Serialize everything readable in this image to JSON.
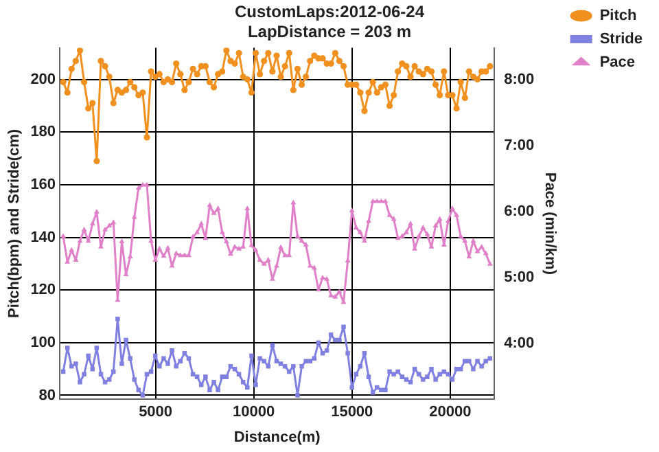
{
  "chart_data": {
    "type": "line",
    "title": "CustomLaps:2012-06-24",
    "subtitle": "LapDistance = 203 m",
    "xlabel": "Distance(m)",
    "ylabel": "Pitch(bpm) and Stride(cm)",
    "y2label": "Pace (min/km)",
    "x": [
      300,
      513,
      726,
      939,
      1152,
      1365,
      1578,
      1791,
      2004,
      2217,
      2430,
      2643,
      2856,
      3069,
      3282,
      3495,
      3708,
      3921,
      4134,
      4347,
      4560,
      4773,
      4986,
      5199,
      5412,
      5625,
      5838,
      6051,
      6264,
      6477,
      6690,
      6903,
      7116,
      7329,
      7542,
      7755,
      7968,
      8181,
      8394,
      8607,
      8820,
      9033,
      9246,
      9459,
      9672,
      9885,
      10098,
      10311,
      10524,
      10737,
      10950,
      11163,
      11376,
      11589,
      11802,
      12015,
      12228,
      12441,
      12654,
      12867,
      13080,
      13293,
      13506,
      13719,
      13932,
      14145,
      14358,
      14571,
      14784,
      14997,
      15210,
      15423,
      15636,
      15849,
      16062,
      16275,
      16488,
      16701,
      16914,
      17127,
      17340,
      17553,
      17766,
      17979,
      18192,
      18405,
      18618,
      18831,
      19044,
      19257,
      19470,
      19683,
      19896,
      20109,
      20322,
      20535,
      20748,
      20961,
      21174,
      21387,
      21600,
      21813,
      22026
    ],
    "series": [
      {
        "name": "Pitch",
        "color": "#f0901e",
        "marker": "circle",
        "values": [
          199,
          195,
          204,
          207,
          211,
          199,
          189,
          191,
          169,
          207,
          205,
          201,
          191,
          196,
          195,
          196,
          199,
          197,
          194,
          195,
          178,
          203,
          201,
          202,
          199,
          200,
          199,
          206,
          202,
          196,
          199,
          204,
          202,
          205,
          205,
          199,
          197,
          202,
          203,
          211,
          207,
          206,
          210,
          201,
          200,
          195,
          210,
          202,
          207,
          210,
          203,
          209,
          201,
          205,
          210,
          196,
          204,
          198,
          201,
          207,
          209,
          208,
          208,
          206,
          206,
          210,
          207,
          205,
          198,
          198,
          198,
          195,
          188,
          195,
          199,
          195,
          197,
          198,
          190,
          194,
          203,
          206,
          205,
          201,
          205,
          203,
          202,
          204,
          203,
          198,
          194,
          203,
          194,
          194,
          189,
          199,
          193,
          203,
          201,
          200,
          203,
          203,
          205
        ]
      },
      {
        "name": "Stride",
        "color": "#8080e0",
        "marker": "square",
        "values": [
          89,
          98,
          91,
          92,
          85,
          88,
          95,
          90,
          98,
          88,
          85,
          86,
          89,
          109,
          92,
          101,
          94,
          86,
          82,
          80,
          88,
          89,
          95,
          91,
          94,
          92,
          97,
          91,
          93,
          96,
          94,
          88,
          87,
          84,
          87,
          82,
          85,
          82,
          87,
          87,
          91,
          90,
          88,
          85,
          83,
          95,
          84,
          94,
          93,
          91,
          99,
          93,
          92,
          91,
          89,
          91,
          80,
          91,
          93,
          93,
          94,
          100,
          96,
          97,
          103,
          101,
          101,
          106,
          96,
          83,
          88,
          91,
          96,
          87,
          81,
          83,
          82,
          82,
          89,
          88,
          89,
          87,
          86,
          85,
          90,
          88,
          86,
          87,
          90,
          86,
          88,
          89,
          88,
          86,
          90,
          90,
          93,
          93,
          90,
          93,
          91,
          93,
          94
        ]
      },
      {
        "name": "Pace",
        "color": "#e080c8",
        "marker": "triangle",
        "axis": "y2",
        "values": [
          5.62,
          5.23,
          5.41,
          5.26,
          5.55,
          5.72,
          5.55,
          5.81,
          5.99,
          5.46,
          5.72,
          5.78,
          5.83,
          4.65,
          5.54,
          5.04,
          5.31,
          5.91,
          6.35,
          6.4,
          6.4,
          5.55,
          5.26,
          5.43,
          5.32,
          5.44,
          5.17,
          5.36,
          5.33,
          5.33,
          5.33,
          5.61,
          5.68,
          5.81,
          5.59,
          6.09,
          5.97,
          6.04,
          5.68,
          5.54,
          5.35,
          5.46,
          5.43,
          5.46,
          6.04,
          5.48,
          5.41,
          5.26,
          5.2,
          5.26,
          4.97,
          5.17,
          5.45,
          5.33,
          5.33,
          6.13,
          5.62,
          5.55,
          5.49,
          5.17,
          5.14,
          4.81,
          4.99,
          4.97,
          4.72,
          4.7,
          4.78,
          4.62,
          5.25,
          6.01,
          5.75,
          5.68,
          5.55,
          5.85,
          6.15,
          6.15,
          6.15,
          6.15,
          5.94,
          5.88,
          5.59,
          5.62,
          5.68,
          5.81,
          5.43,
          5.62,
          5.75,
          5.65,
          5.46,
          5.78,
          5.88,
          5.49,
          5.85,
          6.04,
          5.94,
          5.62,
          5.55,
          5.31,
          5.55,
          5.39,
          5.46,
          5.36,
          5.2
        ]
      }
    ],
    "xlim": [
      125,
      22250
    ],
    "xticks": [
      5000,
      10000,
      15000,
      20000
    ],
    "ylim": [
      78.5,
      212
    ],
    "yticks": [
      80,
      100,
      120,
      140,
      160,
      180,
      200
    ],
    "y2lim": [
      3.15,
      8.48
    ],
    "y2ticks": [
      {
        "value": 4,
        "label": "4:00"
      },
      {
        "value": 5,
        "label": "5:00"
      },
      {
        "value": 6,
        "label": "6:00"
      },
      {
        "value": 7,
        "label": "7:00"
      },
      {
        "value": 8,
        "label": "8:00"
      }
    ],
    "grid": true,
    "legend": "top right",
    "line_style": "solid"
  }
}
